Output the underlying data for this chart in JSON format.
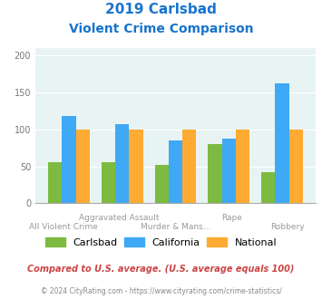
{
  "title_line1": "2019 Carlsbad",
  "title_line2": "Violent Crime Comparison",
  "title_color": "#1874CD",
  "carlsbad": [
    55,
    55,
    52,
    80,
    42
  ],
  "california": [
    118,
    107,
    85,
    87,
    162
  ],
  "national": [
    100,
    100,
    100,
    100,
    100
  ],
  "carlsbad_color": "#7CBB3F",
  "california_color": "#3FA9F5",
  "national_color": "#FFAA33",
  "bg_color": "#E8F4F4",
  "ylim": [
    0,
    210
  ],
  "yticks": [
    0,
    50,
    100,
    150,
    200
  ],
  "top_labels": [
    "All Violent Crime",
    "Aggravated Assault",
    "Murder & Mans...",
    "Rape",
    "Robbery"
  ],
  "bottom_labels": [
    "",
    "Aggravated Assault",
    "Murder & Mans...",
    "Rape",
    "Robbery"
  ],
  "footnote1": "Compared to U.S. average. (U.S. average equals 100)",
  "footnote2": "© 2024 CityRating.com - https://www.cityrating.com/crime-statistics/",
  "footnote1_color": "#CC4444",
  "footnote2_color": "#888888",
  "legend_labels": [
    "Carlsbad",
    "California",
    "National"
  ]
}
